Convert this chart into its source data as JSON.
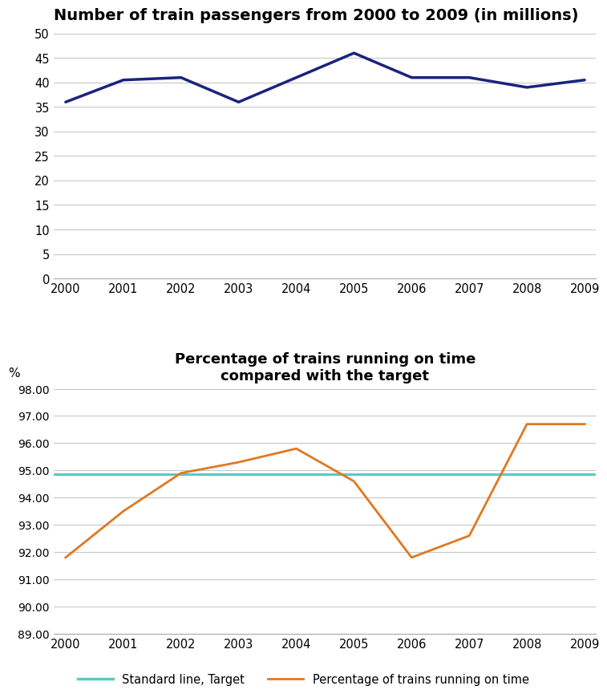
{
  "chart1": {
    "title": "Number of train passengers from 2000 to 2009 (in millions)",
    "years": [
      2000,
      2001,
      2002,
      2003,
      2004,
      2005,
      2006,
      2007,
      2008,
      2009
    ],
    "passengers": [
      36,
      40.5,
      41,
      36,
      41,
      46,
      41,
      41,
      39,
      40.5
    ],
    "line_color": "#1a237e",
    "line_width": 2.5,
    "ylim": [
      0,
      50
    ],
    "yticks": [
      0,
      5,
      10,
      15,
      20,
      25,
      30,
      35,
      40,
      45,
      50
    ]
  },
  "chart2": {
    "title": "Percentage of trains running on time\ncompared with the target",
    "years": [
      2000,
      2001,
      2002,
      2003,
      2004,
      2005,
      2006,
      2007,
      2008,
      2009
    ],
    "on_time": [
      91.8,
      93.5,
      94.9,
      95.3,
      95.8,
      94.6,
      91.8,
      92.6,
      96.7,
      96.7
    ],
    "target": 94.85,
    "on_time_color": "#e07820",
    "target_color": "#5bc8c8",
    "line_width": 2.0,
    "ylim": [
      89.0,
      98.0
    ],
    "yticks": [
      89.0,
      90.0,
      91.0,
      92.0,
      93.0,
      94.0,
      95.0,
      96.0,
      97.0,
      98.0
    ],
    "ylabel": "%",
    "legend_target_label": "Standard line, Target",
    "legend_ontime_label": "Percentage of trains running on time"
  },
  "background_color": "#ffffff",
  "grid_color": "#c8c8c8"
}
